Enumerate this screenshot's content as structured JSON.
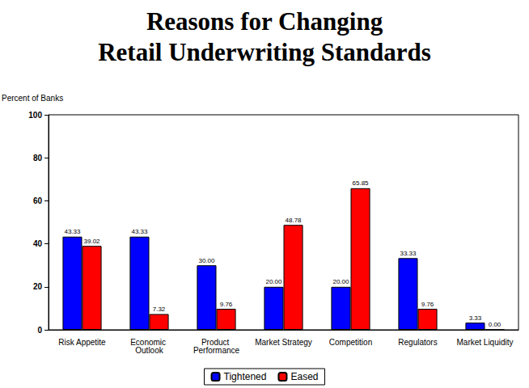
{
  "chart_data": {
    "type": "bar",
    "title": "Reasons for Changing\nRetail Underwriting Standards",
    "ylabel": "Percent of Banks",
    "categories": [
      "Risk Appetite",
      "Economic Outlook",
      "Product Performance",
      "Market Strategy",
      "Competition",
      "Regulators",
      "Market Liquidity"
    ],
    "series": [
      {
        "name": "Tightened",
        "color": "#0000ff",
        "values": [
          43.33,
          43.33,
          30.0,
          20.0,
          20.0,
          33.33,
          3.33
        ],
        "value_labels": [
          "43.33",
          "43.33",
          "30.00",
          "20.00",
          "20.00",
          "33.33",
          "3.33"
        ]
      },
      {
        "name": "Eased",
        "color": "#ff0000",
        "values": [
          39.02,
          7.32,
          9.76,
          48.78,
          65.85,
          9.76,
          0.0
        ],
        "value_labels": [
          "39.02",
          "7.32",
          "9.76",
          "48.78",
          "65.85",
          "9.76",
          "0.00"
        ]
      }
    ],
    "ylim": [
      0,
      100
    ],
    "yticks": [
      0,
      20,
      40,
      60,
      80,
      100
    ],
    "grid": false,
    "legend": "bottom",
    "data_labels": true
  }
}
